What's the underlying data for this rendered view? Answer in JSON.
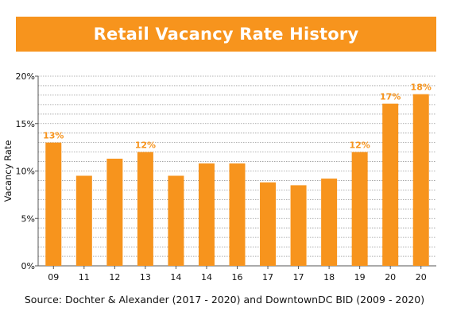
{
  "chart_data": {
    "type": "bar",
    "title": "Retail Vacancy Rate History",
    "ylabel": "Vacancy Rate",
    "xlabel": "",
    "ylim": [
      0,
      20
    ],
    "yticks": [
      "0%",
      "5%",
      "10%",
      "15%",
      "20%"
    ],
    "grid": true,
    "categories": [
      "09",
      "11",
      "12",
      "13",
      "14",
      "14",
      "16",
      "17",
      "17",
      "18",
      "19",
      "20",
      "20"
    ],
    "values": [
      13,
      9.5,
      11.3,
      12,
      9.5,
      10.8,
      10.8,
      8.8,
      8.5,
      9.2,
      12,
      17.1,
      18.1
    ],
    "data_labels": [
      "13%",
      "",
      "",
      "12%",
      "",
      "",
      "",
      "",
      "",
      "",
      "12%",
      "17%",
      "18%"
    ],
    "source": "Source: Dochter & Alexander (2017 - 2020) and DowntownDC BID (2009 - 2020)"
  },
  "colors": {
    "accent": "#f7941d",
    "bar": "#f7941d",
    "label": "#f7941d",
    "grid": "#9a9a9a",
    "text": "#111111"
  }
}
